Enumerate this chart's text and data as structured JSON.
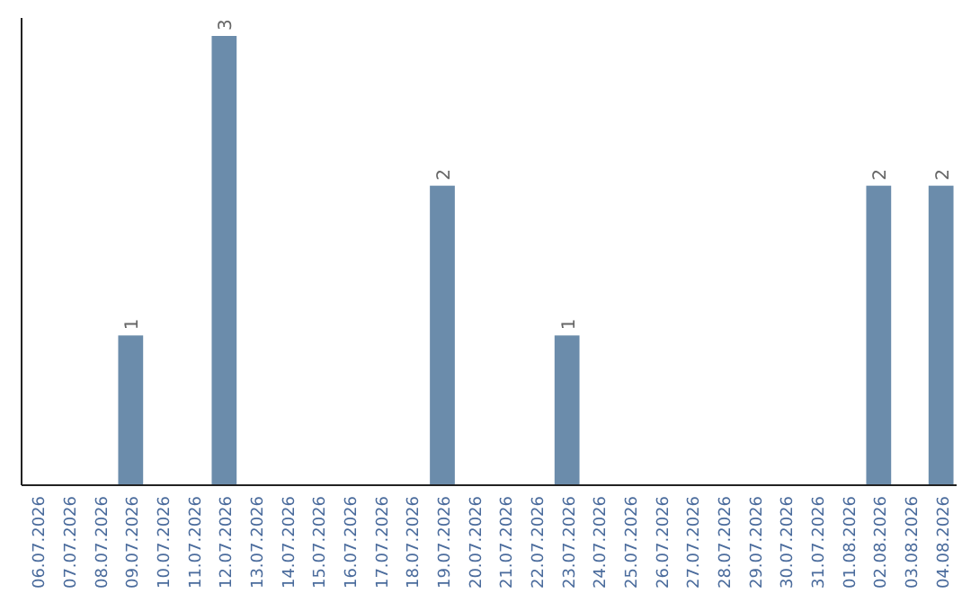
{
  "chart_data": {
    "type": "bar",
    "categories": [
      "06.07.2026",
      "07.07.2026",
      "08.07.2026",
      "09.07.2026",
      "10.07.2026",
      "11.07.2026",
      "12.07.2026",
      "13.07.2026",
      "14.07.2026",
      "15.07.2026",
      "16.07.2026",
      "17.07.2026",
      "18.07.2026",
      "19.07.2026",
      "20.07.2026",
      "21.07.2026",
      "22.07.2026",
      "23.07.2026",
      "24.07.2026",
      "25.07.2026",
      "26.07.2026",
      "27.07.2026",
      "28.07.2026",
      "29.07.2026",
      "30.07.2026",
      "31.07.2026",
      "01.08.2026",
      "02.08.2026",
      "03.08.2026",
      "04.08.2026"
    ],
    "values": [
      null,
      null,
      null,
      1,
      null,
      null,
      3,
      null,
      null,
      null,
      null,
      null,
      null,
      2,
      null,
      null,
      null,
      1,
      null,
      null,
      null,
      null,
      null,
      null,
      null,
      null,
      null,
      2,
      null,
      2
    ],
    "color": "#6b8cab",
    "data_labels": true
  }
}
